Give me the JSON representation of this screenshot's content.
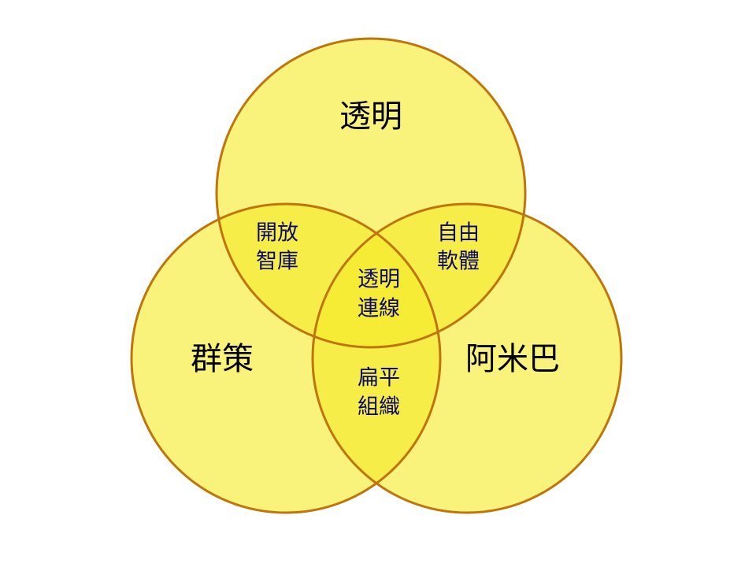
{
  "diagram": {
    "type": "venn-3",
    "colors": {
      "fill": "#f5ea2a",
      "stroke": "#c0750c",
      "set_text": "#000000",
      "overlap_text": "#0a0a6e"
    },
    "sets": {
      "top": "透明",
      "left": "群策",
      "right": "阿米巴"
    },
    "overlaps": {
      "top_left": [
        "開放",
        "智庫"
      ],
      "top_right": [
        "自由",
        "軟體"
      ],
      "left_right": [
        "扁平",
        "組織"
      ],
      "all": [
        "透明",
        "連線"
      ]
    }
  }
}
